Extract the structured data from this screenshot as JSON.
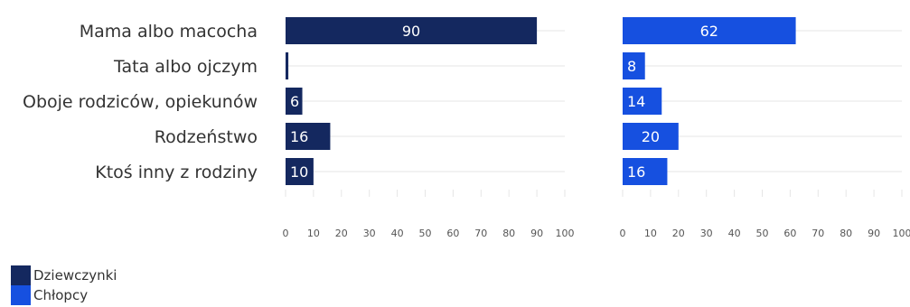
{
  "colors": {
    "dziewczynki": "#14285f",
    "chlopcy": "#1650e0",
    "grid": "#e6e6e6"
  },
  "legend": {
    "items": [
      {
        "label": "Dziewczynki",
        "color": "#14285f"
      },
      {
        "label": "Chłopcy",
        "color": "#1650e0"
      }
    ]
  },
  "chart_data": {
    "type": "bar",
    "orientation": "horizontal",
    "categories": [
      "Mama albo macocha",
      "Tata albo ojczym",
      "Oboje rodziców, opiekunów",
      "Rodzeństwo",
      "Ktoś inny z rodziny"
    ],
    "ticks": [
      0,
      10,
      20,
      30,
      40,
      50,
      60,
      70,
      80,
      90,
      100
    ],
    "xlim": [
      0,
      100
    ],
    "legend_position": "bottom-left",
    "panels": [
      {
        "name": "Dziewczynki",
        "values": [
          90,
          1,
          6,
          16,
          10
        ],
        "labels": [
          "90",
          "",
          "6",
          "16",
          "10"
        ]
      },
      {
        "name": "Chłopcy",
        "values": [
          62,
          8,
          14,
          20,
          16
        ],
        "labels": [
          "62",
          "8",
          "14",
          "20",
          "16"
        ]
      }
    ]
  }
}
